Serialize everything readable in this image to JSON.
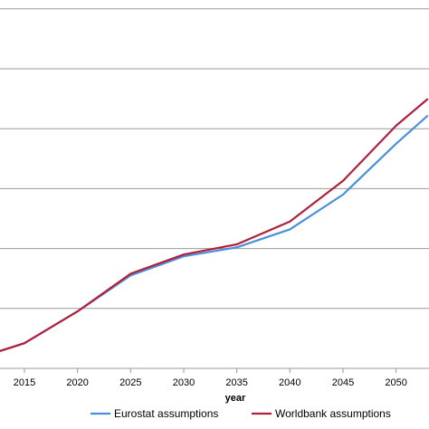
{
  "chart_data": {
    "type": "line",
    "xlabel": "year",
    "x": [
      2012,
      2015,
      2020,
      2025,
      2030,
      2035,
      2040,
      2045,
      2050,
      2053
    ],
    "ylim": [
      0,
      7
    ],
    "grid": true,
    "legend_position": "bottom",
    "series": [
      {
        "name": "Eurostat assumptions",
        "color": "#4a90d9",
        "values": [
          0.25,
          0.42,
          0.95,
          1.55,
          1.87,
          2.02,
          2.32,
          2.9,
          3.75,
          4.22
        ]
      },
      {
        "name": "Worldbank assumptions",
        "color": "#b0203a",
        "values": [
          0.25,
          0.42,
          0.95,
          1.58,
          1.9,
          2.07,
          2.45,
          3.13,
          4.05,
          4.5
        ]
      }
    ],
    "x_tick_labels": [
      "2015",
      "2020",
      "2025",
      "2030",
      "2035",
      "2040",
      "2045",
      "2050"
    ],
    "y_gridlines": [
      1,
      2,
      3,
      4,
      5,
      6,
      7
    ]
  }
}
